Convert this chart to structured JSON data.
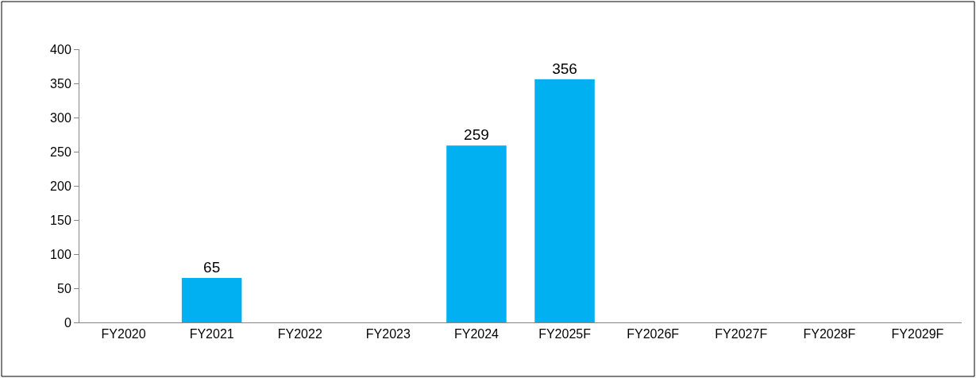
{
  "chart_data": {
    "type": "bar",
    "categories": [
      "FY2020",
      "FY2021",
      "FY2022",
      "FY2023",
      "FY2024",
      "FY2025F",
      "FY2026F",
      "FY2027F",
      "FY2028F",
      "FY2029F"
    ],
    "values": [
      null,
      65,
      null,
      null,
      259,
      356,
      null,
      null,
      null,
      null
    ],
    "color": "#00b0f0",
    "ylim": [
      0,
      400
    ],
    "yticks": [
      0,
      50,
      100,
      150,
      200,
      250,
      300,
      350,
      400
    ],
    "data_labels": true,
    "grid": false
  }
}
